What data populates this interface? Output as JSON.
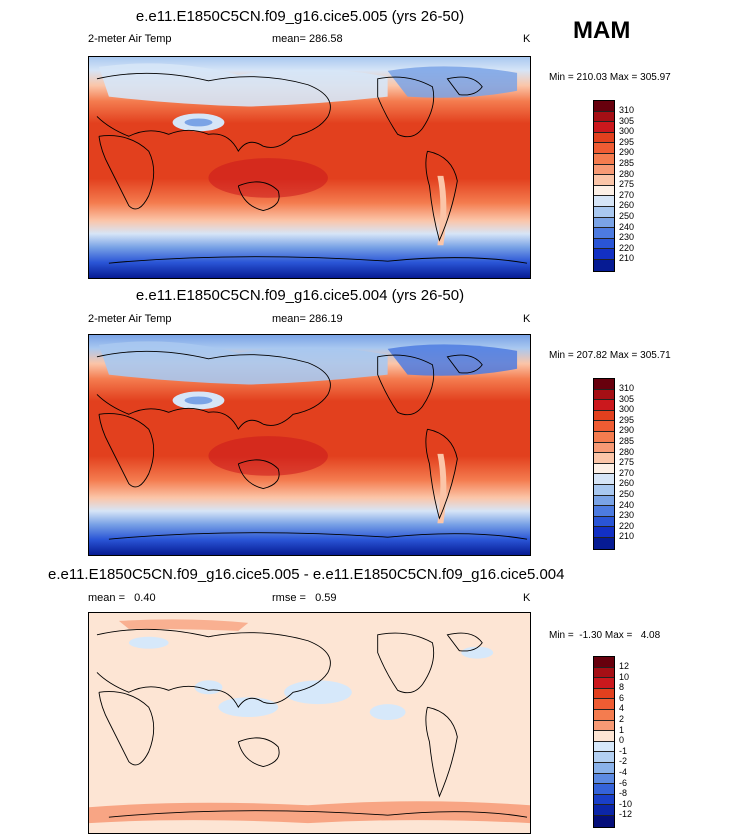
{
  "season": "MAM",
  "panels": [
    {
      "title": "e.e11.E1850C5CN.f09_g16.cice5.005 (yrs 26-50)",
      "left_label": "2-meter Air Temp",
      "center_label": "mean= 286.58",
      "unit": "K",
      "stats": "Min = 210.03 Max = 305.97",
      "colorbar_labels": [
        "310",
        "305",
        "300",
        "295",
        "290",
        "285",
        "280",
        "275",
        "270",
        "260",
        "250",
        "240",
        "230",
        "220",
        "210"
      ],
      "colors": [
        "#67000d",
        "#a50f15",
        "#cb181d",
        "#e2401e",
        "#ef5c33",
        "#f47c4f",
        "#f79a75",
        "#fbc5a8",
        "#fdf0e6",
        "#d6e5f7",
        "#a9c8f0",
        "#7aa3e6",
        "#4d7be0",
        "#2a55d6",
        "#1230c4",
        "#061b93"
      ]
    },
    {
      "title": "e.e11.E1850C5CN.f09_g16.cice5.004 (yrs 26-50)",
      "left_label": "2-meter Air Temp",
      "center_label": "mean= 286.19",
      "unit": "K",
      "stats": "Min = 207.82 Max = 305.71",
      "colorbar_labels": [
        "310",
        "305",
        "300",
        "295",
        "290",
        "285",
        "280",
        "275",
        "270",
        "260",
        "250",
        "240",
        "230",
        "220",
        "210"
      ],
      "colors": [
        "#67000d",
        "#a50f15",
        "#cb181d",
        "#e2401e",
        "#ef5c33",
        "#f47c4f",
        "#f79a75",
        "#fbc5a8",
        "#fdf0e6",
        "#d6e5f7",
        "#a9c8f0",
        "#7aa3e6",
        "#4d7be0",
        "#2a55d6",
        "#1230c4",
        "#061b93"
      ]
    },
    {
      "title": "e.e11.E1850C5CN.f09_g16.cice5.005 - e.e11.E1850C5CN.f09_g16.cice5.004",
      "left_label": "mean =   0.40",
      "center_label": "rmse =   0.59",
      "unit": "K",
      "stats": "Min =  -1.30 Max =   4.08",
      "colorbar_labels": [
        "12",
        "10",
        "8",
        "6",
        "4",
        "2",
        "1",
        "0",
        "-1",
        "-2",
        "-4",
        "-6",
        "-8",
        "-10",
        "-12"
      ],
      "colors": [
        "#67000d",
        "#a50f15",
        "#cb181d",
        "#e2401e",
        "#ef5c33",
        "#f47c4f",
        "#f79a75",
        "#fde5d4",
        "#d6e8fa",
        "#b3d0f2",
        "#8ab2ea",
        "#5c8ae2",
        "#3563d9",
        "#1a3fc8",
        "#0c26a8",
        "#050f7a"
      ]
    }
  ]
}
